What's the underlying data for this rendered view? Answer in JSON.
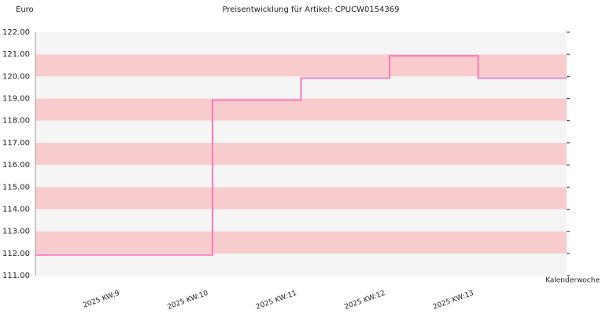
{
  "chart_data": {
    "type": "step",
    "title": "Preisentwicklung für Artikel: CPUCW0154369",
    "y_label": "Euro",
    "x_label": "Kalenderwoche",
    "categories": [
      "2025 KW:9",
      "2025 KW:10",
      "2025 KW:11",
      "2025 KW:12",
      "2025 KW:13"
    ],
    "values": [
      111.93,
      118.93,
      119.93,
      120.93,
      119.93
    ],
    "color": "#ff77bb",
    "ylim": [
      111,
      122
    ],
    "yticks": [
      {
        "value": 111,
        "label": "111.00"
      },
      {
        "value": 112,
        "label": "112.00"
      },
      {
        "value": 113,
        "label": "113.00"
      },
      {
        "value": 114,
        "label": "114.00"
      },
      {
        "value": 115,
        "label": "115.00"
      },
      {
        "value": 116,
        "label": "116.00"
      },
      {
        "value": 117,
        "label": "117.00"
      },
      {
        "value": 118,
        "label": "118.00"
      },
      {
        "value": 119,
        "label": "119.00"
      },
      {
        "value": 120,
        "label": "120.00"
      },
      {
        "value": 121,
        "label": "121.00"
      },
      {
        "value": 122,
        "label": "122.00"
      }
    ],
    "band_colors": [
      "#f5f5f5",
      "#f8cccc"
    ]
  }
}
